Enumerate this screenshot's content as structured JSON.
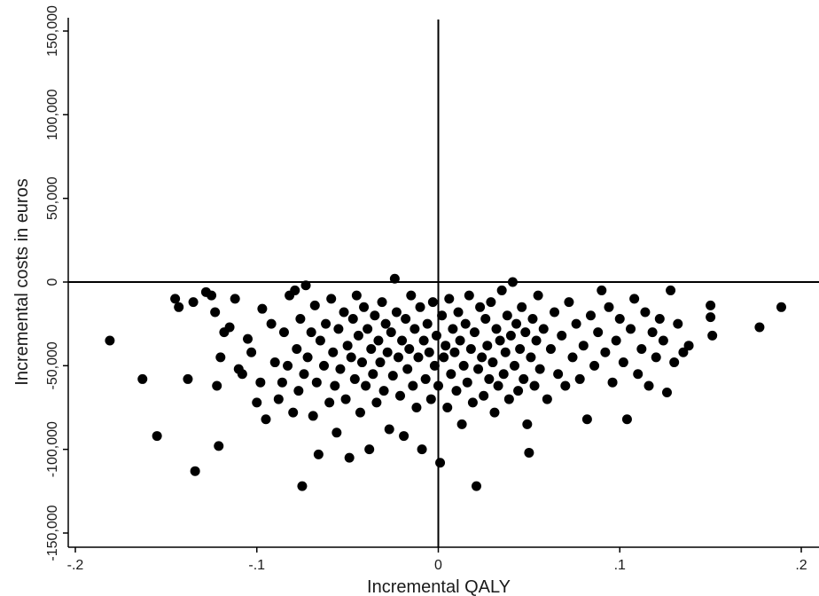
{
  "chart_data": {
    "type": "scatter",
    "title": "",
    "xlabel": "Incremental QALY",
    "ylabel": "Incremental costs in euros",
    "xlim": [
      -0.2,
      0.2
    ],
    "ylim": [
      -150000,
      150000
    ],
    "x_ticks": [
      -0.2,
      -0.1,
      0,
      0.1,
      0.2
    ],
    "x_tick_labels": [
      "-.2",
      "-.1",
      "0",
      ".1",
      ".2"
    ],
    "y_ticks": [
      -150000,
      -100000,
      -50000,
      0,
      50000,
      100000,
      150000
    ],
    "y_tick_labels": [
      "-150,000",
      "-100,000",
      "-50,000",
      "0",
      "50,000",
      "100,000",
      "150,000"
    ],
    "grid": false,
    "reference_lines": {
      "x": 0,
      "y": 0
    },
    "marker_color": "#000000",
    "point_count_note": "approximately 1000 bootstrap replicates; sampled representative points listed",
    "series": [
      {
        "points": [
          [
            -0.181,
            -35000
          ],
          [
            -0.163,
            -58000
          ],
          [
            -0.155,
            -92000
          ],
          [
            -0.145,
            -10000
          ],
          [
            -0.143,
            -15000
          ],
          [
            -0.138,
            -58000
          ],
          [
            -0.134,
            -113000
          ],
          [
            -0.135,
            -12000
          ],
          [
            -0.128,
            -6000
          ],
          [
            -0.125,
            -8000
          ],
          [
            -0.123,
            -18000
          ],
          [
            -0.122,
            -62000
          ],
          [
            -0.121,
            -98000
          ],
          [
            -0.12,
            -45000
          ],
          [
            -0.118,
            -30000
          ],
          [
            -0.115,
            -27000
          ],
          [
            -0.112,
            -10000
          ],
          [
            -0.11,
            -52000
          ],
          [
            -0.108,
            -55000
          ],
          [
            -0.105,
            -34000
          ],
          [
            -0.103,
            -42000
          ],
          [
            -0.1,
            -72000
          ],
          [
            -0.098,
            -60000
          ],
          [
            -0.097,
            -16000
          ],
          [
            -0.095,
            -82000
          ],
          [
            -0.092,
            -25000
          ],
          [
            -0.09,
            -48000
          ],
          [
            -0.088,
            -70000
          ],
          [
            -0.086,
            -60000
          ],
          [
            -0.085,
            -30000
          ],
          [
            -0.083,
            -50000
          ],
          [
            -0.082,
            -8000
          ],
          [
            -0.08,
            -78000
          ],
          [
            -0.079,
            -5000
          ],
          [
            -0.078,
            -40000
          ],
          [
            -0.077,
            -65000
          ],
          [
            -0.076,
            -22000
          ],
          [
            -0.075,
            -122000
          ],
          [
            -0.074,
            -55000
          ],
          [
            -0.073,
            -2000
          ],
          [
            -0.072,
            -45000
          ],
          [
            -0.07,
            -30000
          ],
          [
            -0.069,
            -80000
          ],
          [
            -0.068,
            -14000
          ],
          [
            -0.067,
            -60000
          ],
          [
            -0.066,
            -103000
          ],
          [
            -0.065,
            -35000
          ],
          [
            -0.063,
            -50000
          ],
          [
            -0.062,
            -25000
          ],
          [
            -0.06,
            -72000
          ],
          [
            -0.059,
            -10000
          ],
          [
            -0.058,
            -42000
          ],
          [
            -0.057,
            -62000
          ],
          [
            -0.056,
            -90000
          ],
          [
            -0.055,
            -28000
          ],
          [
            -0.054,
            -52000
          ],
          [
            -0.052,
            -18000
          ],
          [
            -0.051,
            -70000
          ],
          [
            -0.05,
            -38000
          ],
          [
            -0.049,
            -105000
          ],
          [
            -0.048,
            -45000
          ],
          [
            -0.047,
            -22000
          ],
          [
            -0.046,
            -58000
          ],
          [
            -0.045,
            -8000
          ],
          [
            -0.044,
            -32000
          ],
          [
            -0.043,
            -78000
          ],
          [
            -0.042,
            -48000
          ],
          [
            -0.041,
            -15000
          ],
          [
            -0.04,
            -62000
          ],
          [
            -0.039,
            -28000
          ],
          [
            -0.038,
            -100000
          ],
          [
            -0.037,
            -40000
          ],
          [
            -0.036,
            -55000
          ],
          [
            -0.035,
            -20000
          ],
          [
            -0.034,
            -72000
          ],
          [
            -0.033,
            -35000
          ],
          [
            -0.032,
            -48000
          ],
          [
            -0.031,
            -12000
          ],
          [
            -0.03,
            -65000
          ],
          [
            -0.029,
            -25000
          ],
          [
            -0.028,
            -42000
          ],
          [
            -0.027,
            -88000
          ],
          [
            -0.026,
            -30000
          ],
          [
            -0.025,
            -56000
          ],
          [
            -0.024,
            2000
          ],
          [
            -0.023,
            -18000
          ],
          [
            -0.022,
            -45000
          ],
          [
            -0.021,
            -68000
          ],
          [
            -0.02,
            -35000
          ],
          [
            -0.019,
            -92000
          ],
          [
            -0.018,
            -22000
          ],
          [
            -0.017,
            -52000
          ],
          [
            -0.016,
            -40000
          ],
          [
            -0.015,
            -8000
          ],
          [
            -0.014,
            -62000
          ],
          [
            -0.013,
            -28000
          ],
          [
            -0.012,
            -75000
          ],
          [
            -0.011,
            -45000
          ],
          [
            -0.01,
            -15000
          ],
          [
            -0.009,
            -100000
          ],
          [
            -0.008,
            -35000
          ],
          [
            -0.007,
            -58000
          ],
          [
            -0.006,
            -25000
          ],
          [
            -0.005,
            -42000
          ],
          [
            -0.004,
            -70000
          ],
          [
            -0.003,
            -12000
          ],
          [
            -0.002,
            -50000
          ],
          [
            -0.001,
            -32000
          ],
          [
            0.0,
            -62000
          ],
          [
            0.001,
            -108000
          ],
          [
            0.002,
            -20000
          ],
          [
            0.003,
            -45000
          ],
          [
            0.004,
            -38000
          ],
          [
            0.005,
            -75000
          ],
          [
            0.006,
            -10000
          ],
          [
            0.007,
            -55000
          ],
          [
            0.008,
            -28000
          ],
          [
            0.009,
            -42000
          ],
          [
            0.01,
            -65000
          ],
          [
            0.011,
            -18000
          ],
          [
            0.012,
            -35000
          ],
          [
            0.013,
            -85000
          ],
          [
            0.014,
            -50000
          ],
          [
            0.015,
            -25000
          ],
          [
            0.016,
            -60000
          ],
          [
            0.017,
            -8000
          ],
          [
            0.018,
            -40000
          ],
          [
            0.019,
            -72000
          ],
          [
            0.02,
            -30000
          ],
          [
            0.021,
            -122000
          ],
          [
            0.022,
            -52000
          ],
          [
            0.023,
            -15000
          ],
          [
            0.024,
            -45000
          ],
          [
            0.025,
            -68000
          ],
          [
            0.026,
            -22000
          ],
          [
            0.027,
            -38000
          ],
          [
            0.028,
            -58000
          ],
          [
            0.029,
            -12000
          ],
          [
            0.03,
            -48000
          ],
          [
            0.031,
            -78000
          ],
          [
            0.032,
            -28000
          ],
          [
            0.033,
            -62000
          ],
          [
            0.034,
            -35000
          ],
          [
            0.035,
            -5000
          ],
          [
            0.036,
            -55000
          ],
          [
            0.037,
            -42000
          ],
          [
            0.038,
            -20000
          ],
          [
            0.039,
            -70000
          ],
          [
            0.04,
            -32000
          ],
          [
            0.041,
            0
          ],
          [
            0.042,
            -50000
          ],
          [
            0.043,
            -25000
          ],
          [
            0.044,
            -65000
          ],
          [
            0.045,
            -40000
          ],
          [
            0.046,
            -15000
          ],
          [
            0.047,
            -58000
          ],
          [
            0.048,
            -30000
          ],
          [
            0.049,
            -85000
          ],
          [
            0.05,
            -102000
          ],
          [
            0.051,
            -45000
          ],
          [
            0.052,
            -22000
          ],
          [
            0.053,
            -62000
          ],
          [
            0.054,
            -35000
          ],
          [
            0.055,
            -8000
          ],
          [
            0.056,
            -52000
          ],
          [
            0.058,
            -28000
          ],
          [
            0.06,
            -70000
          ],
          [
            0.062,
            -40000
          ],
          [
            0.064,
            -18000
          ],
          [
            0.066,
            -55000
          ],
          [
            0.068,
            -32000
          ],
          [
            0.07,
            -62000
          ],
          [
            0.072,
            -12000
          ],
          [
            0.074,
            -45000
          ],
          [
            0.076,
            -25000
          ],
          [
            0.078,
            -58000
          ],
          [
            0.08,
            -38000
          ],
          [
            0.082,
            -82000
          ],
          [
            0.084,
            -20000
          ],
          [
            0.086,
            -50000
          ],
          [
            0.088,
            -30000
          ],
          [
            0.09,
            -5000
          ],
          [
            0.092,
            -42000
          ],
          [
            0.094,
            -15000
          ],
          [
            0.096,
            -60000
          ],
          [
            0.098,
            -35000
          ],
          [
            0.1,
            -22000
          ],
          [
            0.102,
            -48000
          ],
          [
            0.104,
            -82000
          ],
          [
            0.106,
            -28000
          ],
          [
            0.108,
            -10000
          ],
          [
            0.11,
            -55000
          ],
          [
            0.112,
            -40000
          ],
          [
            0.114,
            -18000
          ],
          [
            0.116,
            -62000
          ],
          [
            0.118,
            -30000
          ],
          [
            0.12,
            -45000
          ],
          [
            0.122,
            -22000
          ],
          [
            0.124,
            -35000
          ],
          [
            0.126,
            -66000
          ],
          [
            0.128,
            -5000
          ],
          [
            0.13,
            -48000
          ],
          [
            0.132,
            -25000
          ],
          [
            0.135,
            -42000
          ],
          [
            0.138,
            -38000
          ],
          [
            0.15,
            -14000
          ],
          [
            0.15,
            -21000
          ],
          [
            0.151,
            -32000
          ],
          [
            0.177,
            -27000
          ],
          [
            0.189,
            -15000
          ]
        ]
      }
    ]
  }
}
